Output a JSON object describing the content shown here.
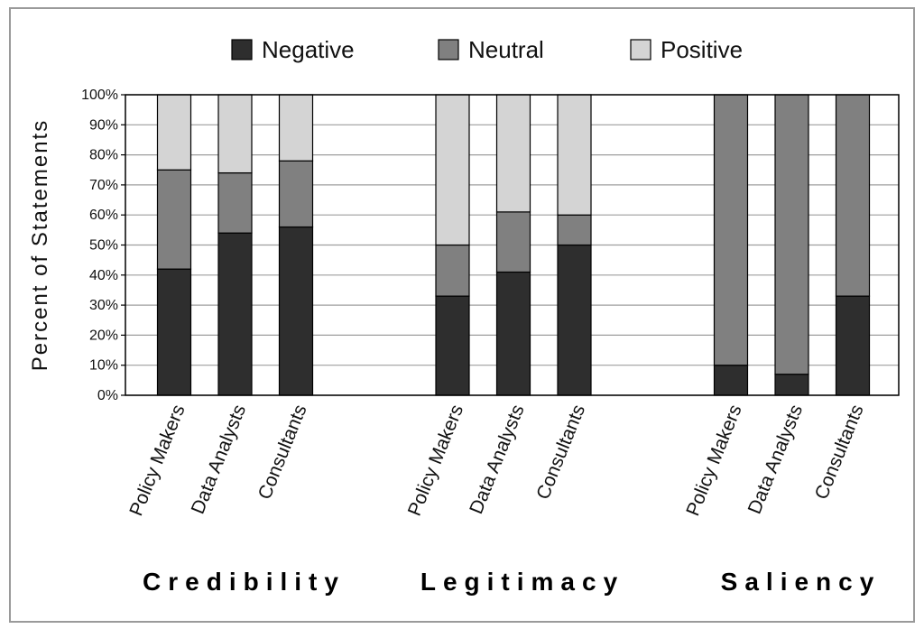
{
  "chart_data": {
    "type": "bar",
    "stacked": true,
    "ylabel": "Percent of Statements",
    "ylim": [
      0,
      100
    ],
    "yticks": [
      "0%",
      "10%",
      "20%",
      "30%",
      "40%",
      "50%",
      "60%",
      "70%",
      "80%",
      "90%",
      "100%"
    ],
    "legend_position": "top",
    "grid": true,
    "groups": [
      {
        "label": "Credibility",
        "categories": [
          "Policy Makers",
          "Data Analysts",
          "Consultants"
        ]
      },
      {
        "label": "Legitimacy",
        "categories": [
          "Policy Makers",
          "Data Analysts",
          "Consultants"
        ]
      },
      {
        "label": "Saliency",
        "categories": [
          "Policy Makers",
          "Data Analysts",
          "Consultants"
        ]
      }
    ],
    "series": [
      {
        "name": "Negative",
        "color": "#2e2e2e",
        "values": [
          42,
          54,
          56,
          33,
          41,
          50,
          10,
          7,
          33
        ]
      },
      {
        "name": "Neutral",
        "color": "#808080",
        "values": [
          33,
          20,
          22,
          17,
          20,
          10,
          90,
          93,
          67
        ]
      },
      {
        "name": "Positive",
        "color": "#d4d4d4",
        "values": [
          25,
          26,
          22,
          50,
          39,
          40,
          0,
          0,
          0
        ]
      }
    ]
  }
}
